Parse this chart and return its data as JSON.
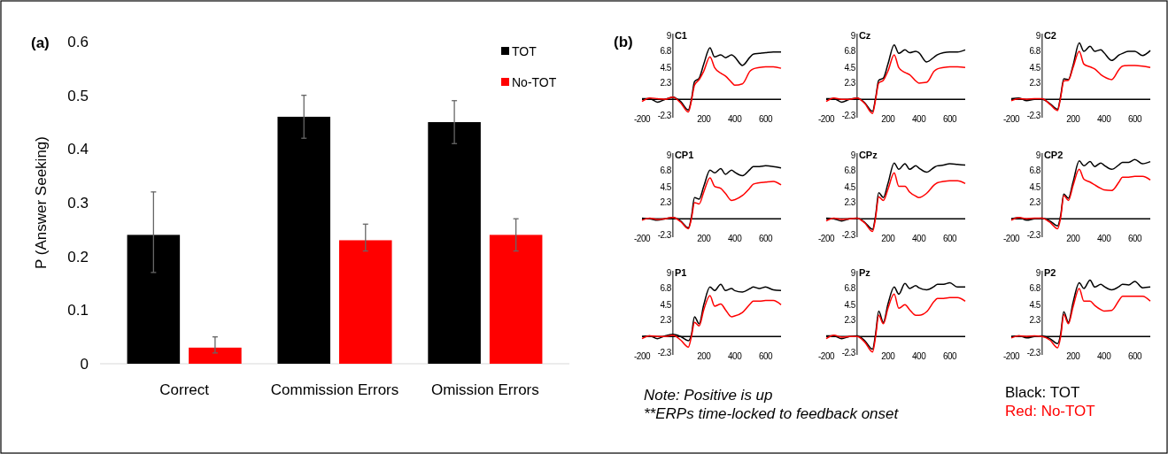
{
  "chart_data": [
    {
      "type": "bar",
      "title": "(a)",
      "ylabel": "P (Answer Seeking)",
      "categories": [
        "Correct",
        "Commission Errors",
        "Omission Errors"
      ],
      "series": [
        {
          "name": "TOT",
          "color": "#000000",
          "values": [
            0.24,
            0.46,
            0.45
          ],
          "errors": [
            [
              0.17,
              0.32
            ],
            [
              0.42,
              0.5
            ],
            [
              0.41,
              0.49
            ]
          ]
        },
        {
          "name": "No-TOT",
          "color": "#ff0000",
          "values": [
            0.03,
            0.23,
            0.24
          ],
          "errors": [
            [
              0.02,
              0.05
            ],
            [
              0.21,
              0.26
            ],
            [
              0.21,
              0.27
            ]
          ]
        }
      ],
      "ylim": [
        0,
        0.6
      ],
      "yticks": [
        0,
        0.1,
        0.2,
        0.3,
        0.4,
        0.5,
        0.6
      ],
      "legend": "top right"
    },
    {
      "type": "line",
      "title": "C1",
      "x": [
        -200,
        -150,
        -100,
        -50,
        0,
        50,
        100,
        120,
        140,
        170,
        200,
        240,
        270,
        310,
        340,
        380,
        400,
        450,
        500,
        520,
        560,
        600,
        650,
        700
      ],
      "series": [
        {
          "color": "#000000",
          "values": [
            0.1,
            0.1,
            -0.4,
            0.0,
            0.3,
            -0.3,
            -1.5,
            0.0,
            2.5,
            3.0,
            5.0,
            7.3,
            6.0,
            6.3,
            5.9,
            6.3,
            6.0,
            4.8,
            6.0,
            6.4,
            6.5,
            6.6,
            6.7,
            6.7
          ]
        },
        {
          "color": "#ff0000",
          "values": [
            -0.3,
            0.2,
            0.1,
            0.0,
            0.3,
            -0.5,
            -1.8,
            -0.2,
            2.0,
            2.8,
            4.0,
            6.0,
            4.5,
            3.7,
            3.3,
            2.4,
            2.0,
            2.2,
            4.0,
            4.3,
            4.5,
            4.6,
            4.6,
            4.4
          ]
        }
      ],
      "xlim": [
        -200,
        700
      ],
      "xticks": [
        -200,
        200,
        400,
        600
      ],
      "ylim": [
        -2.6,
        9.3
      ],
      "yticks": [
        -2.3,
        2.3,
        4.5,
        6.8,
        9
      ]
    },
    {
      "type": "line",
      "title": "Cz",
      "x": [
        -200,
        -150,
        -100,
        -50,
        0,
        50,
        100,
        120,
        140,
        170,
        200,
        240,
        270,
        310,
        340,
        380,
        400,
        450,
        500,
        520,
        560,
        600,
        650,
        700
      ],
      "series": [
        {
          "color": "#000000",
          "values": [
            0.1,
            0.1,
            -0.4,
            0.0,
            0.2,
            -0.5,
            -1.7,
            0.2,
            2.7,
            3.0,
            5.0,
            7.7,
            6.5,
            7.0,
            6.6,
            6.8,
            6.6,
            5.3,
            6.0,
            6.3,
            6.6,
            6.7,
            6.7,
            7.0
          ]
        },
        {
          "color": "#ff0000",
          "values": [
            -0.3,
            0.2,
            0.0,
            0.0,
            0.2,
            -0.6,
            -2.0,
            0.0,
            2.3,
            2.7,
            4.0,
            6.3,
            4.5,
            3.8,
            3.5,
            2.6,
            2.3,
            2.4,
            4.0,
            4.3,
            4.5,
            4.6,
            4.6,
            4.5
          ]
        }
      ],
      "xlim": [
        -200,
        700
      ],
      "xticks": [
        -200,
        200,
        400,
        600
      ],
      "ylim": [
        -2.6,
        9.3
      ],
      "yticks": [
        -2.3,
        2.3,
        4.5,
        6.8,
        9
      ]
    },
    {
      "type": "line",
      "title": "C2",
      "x": [
        -200,
        -150,
        -100,
        -50,
        0,
        50,
        100,
        120,
        140,
        170,
        200,
        240,
        270,
        310,
        340,
        380,
        400,
        450,
        500,
        520,
        560,
        600,
        650,
        700
      ],
      "series": [
        {
          "color": "#000000",
          "values": [
            0.1,
            0.2,
            -0.2,
            0.0,
            0.0,
            -0.6,
            -1.4,
            0.5,
            2.9,
            2.8,
            4.8,
            8.0,
            6.8,
            7.5,
            6.8,
            7.0,
            6.6,
            5.5,
            6.3,
            6.5,
            6.8,
            6.8,
            6.2,
            6.9
          ]
        },
        {
          "color": "#ff0000",
          "values": [
            -0.2,
            0.1,
            0.0,
            0.1,
            0.1,
            -0.7,
            -1.6,
            0.3,
            2.6,
            2.7,
            4.5,
            6.8,
            5.0,
            4.6,
            4.3,
            3.5,
            3.2,
            2.8,
            4.3,
            4.7,
            4.8,
            4.8,
            4.7,
            4.5
          ]
        }
      ],
      "xlim": [
        -200,
        700
      ],
      "xticks": [
        -200,
        200,
        400,
        600
      ],
      "ylim": [
        -2.6,
        9.3
      ],
      "yticks": [
        -2.3,
        2.3,
        4.5,
        6.8,
        9
      ]
    },
    {
      "type": "line",
      "title": "CP1",
      "x": [
        -200,
        -150,
        -100,
        -50,
        0,
        50,
        100,
        120,
        140,
        170,
        200,
        240,
        270,
        310,
        340,
        380,
        400,
        450,
        500,
        520,
        560,
        600,
        650,
        700
      ],
      "series": [
        {
          "color": "#000000",
          "values": [
            0.1,
            0.0,
            -0.2,
            0.0,
            0.2,
            -0.3,
            -1.3,
            0.3,
            3.0,
            2.8,
            4.6,
            6.9,
            6.5,
            7.1,
            6.3,
            6.9,
            6.6,
            6.1,
            7.0,
            7.4,
            7.4,
            7.5,
            7.4,
            7.2
          ]
        },
        {
          "color": "#ff0000",
          "values": [
            -0.2,
            0.1,
            -0.1,
            0.0,
            0.2,
            -0.4,
            -1.4,
            0.0,
            2.3,
            2.1,
            3.8,
            5.8,
            4.6,
            4.3,
            3.6,
            2.6,
            2.7,
            3.3,
            4.4,
            4.9,
            5.1,
            5.2,
            5.3,
            4.8
          ]
        }
      ],
      "xlim": [
        -200,
        700
      ],
      "xticks": [
        -200,
        200,
        400,
        600
      ],
      "ylim": [
        -2.6,
        9.3
      ],
      "yticks": [
        -2.3,
        2.3,
        4.5,
        6.8,
        9
      ]
    },
    {
      "type": "line",
      "title": "CPz",
      "x": [
        -200,
        -150,
        -100,
        -50,
        0,
        50,
        100,
        120,
        140,
        170,
        200,
        240,
        270,
        310,
        340,
        380,
        400,
        450,
        500,
        520,
        560,
        600,
        650,
        700
      ],
      "series": [
        {
          "color": "#000000",
          "values": [
            0.1,
            0.0,
            -0.3,
            0.0,
            0.1,
            -0.5,
            -1.5,
            0.5,
            3.7,
            3.0,
            5.0,
            7.9,
            7.0,
            7.8,
            7.0,
            7.5,
            7.2,
            6.6,
            7.3,
            7.5,
            7.6,
            7.8,
            7.7,
            7.6
          ]
        },
        {
          "color": "#ff0000",
          "values": [
            -0.3,
            0.1,
            -0.1,
            0.0,
            0.1,
            -0.6,
            -1.8,
            0.2,
            3.1,
            2.6,
            4.2,
            6.5,
            4.6,
            4.6,
            3.8,
            3.2,
            3.0,
            3.6,
            4.8,
            5.1,
            5.3,
            5.4,
            5.4,
            5.0
          ]
        }
      ],
      "xlim": [
        -200,
        700
      ],
      "xticks": [
        -200,
        200,
        400,
        600
      ],
      "ylim": [
        -2.6,
        9.3
      ],
      "yticks": [
        -2.3,
        2.3,
        4.5,
        6.8,
        9
      ]
    },
    {
      "type": "line",
      "title": "CP2",
      "x": [
        -200,
        -150,
        -100,
        -50,
        0,
        50,
        100,
        120,
        140,
        170,
        200,
        240,
        270,
        310,
        340,
        380,
        400,
        450,
        500,
        520,
        560,
        600,
        650,
        700
      ],
      "series": [
        {
          "color": "#000000",
          "values": [
            0.0,
            0.2,
            -0.2,
            0.0,
            0.1,
            -0.3,
            -1.0,
            0.5,
            3.5,
            2.9,
            5.2,
            8.2,
            7.5,
            8.1,
            7.4,
            7.9,
            7.6,
            7.0,
            7.7,
            8.0,
            8.0,
            8.4,
            7.8,
            8.1
          ]
        },
        {
          "color": "#ff0000",
          "values": [
            -0.2,
            0.2,
            0.0,
            0.1,
            0.1,
            -0.5,
            -1.4,
            0.2,
            3.3,
            2.6,
            4.7,
            7.0,
            5.6,
            5.2,
            4.8,
            4.3,
            4.1,
            4.0,
            5.3,
            5.9,
            5.9,
            6.0,
            6.0,
            5.5
          ]
        }
      ],
      "xlim": [
        -200,
        700
      ],
      "xticks": [
        -200,
        200,
        400,
        600
      ],
      "ylim": [
        -2.6,
        9.3
      ],
      "yticks": [
        -2.3,
        2.3,
        4.5,
        6.8,
        9
      ]
    },
    {
      "type": "line",
      "title": "P1",
      "x": [
        -200,
        -150,
        -100,
        -50,
        0,
        50,
        100,
        120,
        140,
        170,
        200,
        240,
        270,
        310,
        340,
        380,
        400,
        450,
        500,
        520,
        560,
        600,
        650,
        700
      ],
      "series": [
        {
          "color": "#000000",
          "values": [
            0.0,
            0.1,
            -0.3,
            0.1,
            0.3,
            0.0,
            -0.6,
            0.3,
            2.8,
            1.8,
            4.5,
            7.0,
            6.5,
            7.4,
            6.5,
            6.8,
            6.5,
            6.3,
            6.8,
            7.0,
            6.8,
            7.0,
            6.6,
            6.5
          ]
        },
        {
          "color": "#ff0000",
          "values": [
            -0.3,
            0.1,
            0.0,
            0.0,
            0.2,
            -0.5,
            -1.5,
            0.0,
            2.0,
            1.5,
            3.8,
            5.8,
            4.3,
            4.6,
            3.8,
            2.8,
            2.9,
            3.4,
            4.6,
            5.0,
            5.0,
            5.1,
            5.1,
            4.5
          ]
        }
      ],
      "xlim": [
        -200,
        700
      ],
      "xticks": [
        -200,
        200,
        400,
        600
      ],
      "ylim": [
        -2.6,
        9.3
      ],
      "yticks": [
        -2.3,
        2.3,
        4.5,
        6.8,
        9
      ]
    },
    {
      "type": "line",
      "title": "Pz",
      "x": [
        -200,
        -150,
        -100,
        -50,
        0,
        50,
        100,
        120,
        140,
        170,
        200,
        240,
        270,
        310,
        340,
        380,
        400,
        450,
        500,
        520,
        560,
        600,
        650,
        700
      ],
      "series": [
        {
          "color": "#000000",
          "values": [
            0.1,
            0.1,
            -0.3,
            0.0,
            0.1,
            -0.6,
            -1.8,
            0.4,
            3.6,
            2.0,
            4.6,
            7.0,
            6.0,
            7.5,
            6.8,
            7.2,
            6.9,
            6.6,
            7.1,
            7.4,
            7.4,
            7.6,
            7.0,
            7.0
          ]
        },
        {
          "color": "#ff0000",
          "values": [
            -0.3,
            0.2,
            -0.1,
            0.0,
            0.0,
            -0.8,
            -2.2,
            0.0,
            3.0,
            1.8,
            4.0,
            6.0,
            4.0,
            4.5,
            3.8,
            3.0,
            3.0,
            3.5,
            5.0,
            5.4,
            5.4,
            5.5,
            5.5,
            5.0
          ]
        }
      ],
      "xlim": [
        -200,
        700
      ],
      "xticks": [
        -200,
        200,
        400,
        600
      ],
      "ylim": [
        -2.6,
        9.3
      ],
      "yticks": [
        -2.3,
        2.3,
        4.5,
        6.8,
        9
      ]
    },
    {
      "type": "line",
      "title": "P2",
      "x": [
        -200,
        -150,
        -100,
        -50,
        0,
        50,
        100,
        120,
        140,
        170,
        200,
        240,
        270,
        310,
        340,
        380,
        400,
        450,
        500,
        520,
        560,
        600,
        650,
        700
      ],
      "series": [
        {
          "name": "Black: TOT",
          "color": "#000000",
          "values": [
            0.0,
            0.1,
            -0.2,
            0.0,
            0.1,
            -0.3,
            -1.0,
            0.4,
            3.5,
            2.0,
            4.8,
            7.6,
            6.8,
            8.0,
            7.0,
            7.4,
            7.1,
            6.6,
            7.1,
            7.4,
            7.3,
            7.8,
            6.9,
            7.0
          ]
        },
        {
          "name": "Red: No-TOT",
          "color": "#ff0000",
          "values": [
            -0.2,
            0.1,
            0.0,
            0.1,
            0.0,
            -0.5,
            -1.6,
            0.0,
            3.1,
            1.8,
            4.2,
            6.8,
            5.0,
            5.0,
            4.4,
            3.8,
            3.6,
            3.7,
            5.2,
            5.7,
            5.7,
            5.7,
            5.7,
            5.0
          ]
        }
      ],
      "xlim": [
        -200,
        700
      ],
      "xticks": [
        -200,
        200,
        400,
        600
      ],
      "ylim": [
        -2.6,
        9.3
      ],
      "yticks": [
        -2.3,
        2.3,
        4.5,
        6.8,
        9
      ],
      "legend": "bottom"
    },
    {
      "type": "other",
      "title": "(b)",
      "annotations": [
        "Note: Positive is up",
        "**ERPs time-locked to feedback onset"
      ]
    }
  ]
}
